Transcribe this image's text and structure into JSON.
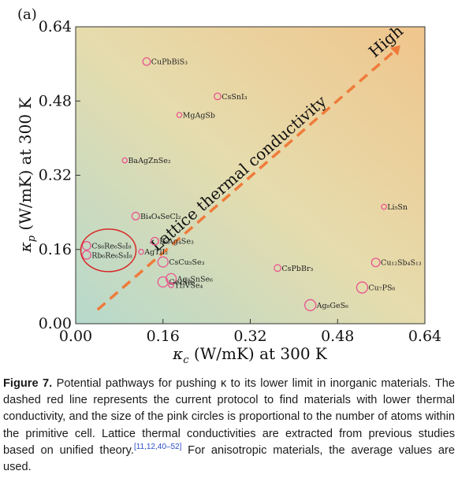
{
  "chart_data": {
    "type": "scatter",
    "panel_label": "(a)",
    "xlabel": "κ_c (W/mK) at 300 K",
    "ylabel": "κ_p (W/mK) at 300 K",
    "xlim": [
      0,
      0.64
    ],
    "ylim": [
      0,
      0.64
    ],
    "xticks": [
      "0.00",
      "0.16",
      "0.32",
      "0.48",
      "0.64"
    ],
    "yticks": [
      "0.00",
      "0.16",
      "0.32",
      "0.48",
      "0.64"
    ],
    "grid": false,
    "marker_color": "#e8558f",
    "arrow_color": "#ef7b3a",
    "points": [
      {
        "name": "CuPbBiS₃",
        "x": 0.13,
        "y": 0.565,
        "size": 6
      },
      {
        "name": "CsSnI₃",
        "x": 0.26,
        "y": 0.49,
        "size": 5
      },
      {
        "name": "MgAgSb",
        "x": 0.19,
        "y": 0.45,
        "size": 3
      },
      {
        "name": "BaAgZnSe₂",
        "x": 0.09,
        "y": 0.352,
        "size": 3
      },
      {
        "name": "Bi₄O₄SeCl₂",
        "x": 0.11,
        "y": 0.232,
        "size": 6
      },
      {
        "name": "K₂Ag₄Se₃",
        "x": 0.145,
        "y": 0.178,
        "size": 6
      },
      {
        "name": "AgTlI₂",
        "x": 0.12,
        "y": 0.155,
        "size": 3
      },
      {
        "name": "CsCu₅Se₃",
        "x": 0.16,
        "y": 0.133,
        "size": 9
      },
      {
        "name": "Cs₆Re₆S₈I₈",
        "x": 0.02,
        "y": 0.168,
        "size": 7
      },
      {
        "name": "Rb₆Re₆S₈I₈",
        "x": 0.02,
        "y": 0.148,
        "size": 7
      },
      {
        "name": "Ag₈SnSe₆",
        "x": 0.175,
        "y": 0.097,
        "size": 9
      },
      {
        "name": "Ge₄Se₉",
        "x": 0.16,
        "y": 0.09,
        "size": 9
      },
      {
        "name": "Tl₃VSe₄",
        "x": 0.175,
        "y": 0.083,
        "size": 3
      },
      {
        "name": "CsPbBr₃",
        "x": 0.37,
        "y": 0.12,
        "size": 5
      },
      {
        "name": "Ag₈GeS₆",
        "x": 0.43,
        "y": 0.04,
        "size": 10
      },
      {
        "name": "Li₅Sn",
        "x": 0.565,
        "y": 0.252,
        "size": 3
      },
      {
        "name": "Cu₁₂Sb₄S₁₃",
        "x": 0.55,
        "y": 0.132,
        "size": 7
      },
      {
        "name": "Cu₇PS₆",
        "x": 0.525,
        "y": 0.078,
        "size": 10
      }
    ],
    "annotations": {
      "trend_label": "Lattice thermal conductivity",
      "high_label": "High"
    }
  },
  "caption": {
    "figure_label": "Figure 7.",
    "text": " Potential pathways for pushing κ to its lower limit in inorganic materials. The dashed red line represents the current protocol to find materials with lower thermal conductivity, and the size of the pink circles is proportional to the number of atoms within the primitive cell. Lattice thermal conductivities are extracted from previous studies based on unified theory.",
    "refs": "[11,12,40–52]",
    "text_after": " For anisotropic materials, the average values are used."
  }
}
